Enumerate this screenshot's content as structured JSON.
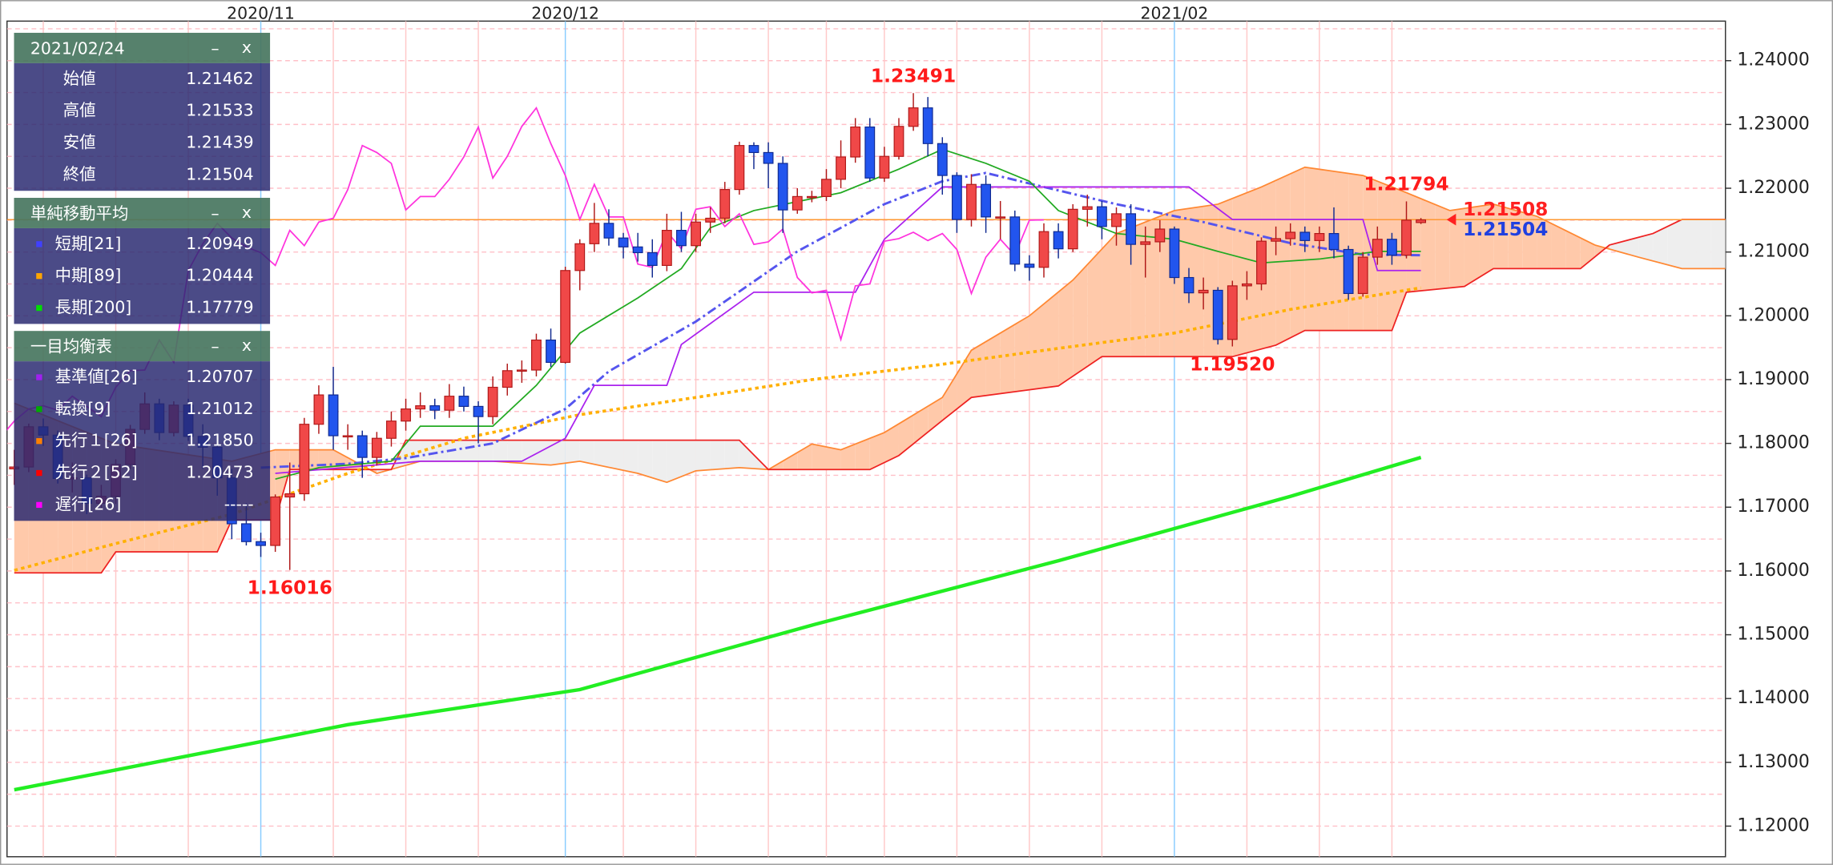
{
  "chart_data": {
    "type": "candlestick",
    "xlim": [
      -0.5,
      118
    ],
    "ylim": [
      1.1152,
      1.2462
    ],
    "yticks": [
      {
        "value": 1.12,
        "label": "1.12000"
      },
      {
        "value": 1.13,
        "label": "1.13000"
      },
      {
        "value": 1.14,
        "label": "1.14000"
      },
      {
        "value": 1.15,
        "label": "1.15000"
      },
      {
        "value": 1.16,
        "label": "1.16000"
      },
      {
        "value": 1.17,
        "label": "1.17000"
      },
      {
        "value": 1.18,
        "label": "1.18000"
      },
      {
        "value": 1.19,
        "label": "1.19000"
      },
      {
        "value": 1.2,
        "label": "1.20000"
      },
      {
        "value": 1.21,
        "label": "1.21000"
      },
      {
        "value": 1.22,
        "label": "1.22000"
      },
      {
        "value": 1.23,
        "label": "1.23000"
      },
      {
        "value": 1.24,
        "label": "1.24000"
      }
    ],
    "yminor": [
      1.115,
      1.125,
      1.135,
      1.145,
      1.155,
      1.165,
      1.175,
      1.185,
      1.195,
      1.205,
      1.215,
      1.225,
      1.235,
      1.245
    ],
    "xticks": [
      {
        "value": 17,
        "label": "2020/11"
      },
      {
        "value": 38,
        "label": "2020/12"
      },
      {
        "value": 80,
        "label": "2021/02"
      }
    ],
    "xgrid": [
      2,
      7,
      12,
      22,
      27,
      32,
      42,
      47,
      52,
      56,
      60,
      65,
      70,
      75,
      85,
      90,
      95
    ],
    "grid": true,
    "up_color": "#f04848",
    "down_color": "#2255ee",
    "open": [
      1.176,
      1.1763,
      1.1826,
      1.1813,
      1.1745,
      1.1746,
      1.1706,
      1.1717,
      1.1767,
      1.1822,
      1.1862,
      1.1817,
      1.186,
      1.1811,
      1.1794,
      1.1746,
      1.1674,
      1.1646,
      1.164,
      1.1716,
      1.1721,
      1.183,
      1.1876,
      1.1812,
      1.1812,
      1.1778,
      1.1808,
      1.1835,
      1.1854,
      1.1859,
      1.1852,
      1.1874,
      1.1858,
      1.1842,
      1.1888,
      1.1914,
      1.1915,
      1.1962,
      1.1927,
      1.2071,
      1.2113,
      1.2145,
      1.2122,
      1.2108,
      1.2099,
      1.2079,
      1.2134,
      1.211,
      1.2147,
      1.2153,
      1.2198,
      1.2267,
      1.2256,
      1.2239,
      1.2166,
      1.2187,
      1.2187,
      1.2214,
      1.2249,
      1.2296,
      1.2216,
      1.225,
      1.2297,
      1.2326,
      1.227,
      1.222,
      1.2151,
      1.2206,
      1.2155,
      1.2155,
      1.2081,
      1.2076,
      1.2132,
      1.2105,
      1.2167,
      1.2171,
      1.214,
      1.216,
      1.2112,
      1.2116,
      1.2136,
      1.206,
      1.2036,
      1.204,
      1.1963,
      1.2047,
      1.205,
      1.2117,
      1.2121,
      1.2131,
      1.2118,
      1.2129,
      1.2104,
      1.2035,
      1.2092,
      1.212,
      1.2095,
      1.21462
    ],
    "high": [
      1.179,
      1.1831,
      1.1839,
      1.182,
      1.177,
      1.1751,
      1.1735,
      1.1775,
      1.1829,
      1.188,
      1.187,
      1.1866,
      1.187,
      1.183,
      1.1802,
      1.176,
      1.1706,
      1.166,
      1.172,
      1.177,
      1.184,
      1.1891,
      1.192,
      1.183,
      1.182,
      1.1818,
      1.185,
      1.187,
      1.188,
      1.187,
      1.1893,
      1.1889,
      1.1866,
      1.1905,
      1.1925,
      1.193,
      1.1972,
      1.198,
      1.2077,
      1.212,
      1.2177,
      1.2167,
      1.213,
      1.213,
      1.212,
      1.216,
      1.2163,
      1.216,
      1.217,
      1.221,
      1.2273,
      1.2272,
      1.2272,
      1.225,
      1.22,
      1.2196,
      1.223,
      1.2275,
      1.231,
      1.231,
      1.2265,
      1.231,
      1.23491,
      1.2343,
      1.228,
      1.2225,
      1.2222,
      1.222,
      1.218,
      1.2165,
      1.2095,
      1.2145,
      1.2145,
      1.2175,
      1.219,
      1.218,
      1.217,
      1.2175,
      1.214,
      1.215,
      1.214,
      1.2075,
      1.206,
      1.2045,
      1.2055,
      1.207,
      1.2123,
      1.214,
      1.2145,
      1.214,
      1.214,
      1.217,
      1.211,
      1.21,
      1.214,
      1.213,
      1.21794,
      1.21533
    ],
    "low": [
      1.1735,
      1.1755,
      1.1796,
      1.1737,
      1.1723,
      1.1689,
      1.1695,
      1.1705,
      1.176,
      1.1815,
      1.1805,
      1.1811,
      1.1804,
      1.176,
      1.1718,
      1.165,
      1.164,
      1.1622,
      1.163,
      1.16016,
      1.171,
      1.1815,
      1.179,
      1.179,
      1.1746,
      1.1765,
      1.1795,
      1.182,
      1.184,
      1.1838,
      1.184,
      1.185,
      1.18,
      1.183,
      1.1875,
      1.1895,
      1.1905,
      1.192,
      1.1925,
      1.204,
      1.21,
      1.211,
      1.209,
      1.2085,
      1.206,
      1.207,
      1.21,
      1.21,
      1.213,
      1.2145,
      1.219,
      1.223,
      1.22,
      1.213,
      1.216,
      1.2178,
      1.218,
      1.22,
      1.224,
      1.221,
      1.221,
      1.2245,
      1.229,
      1.225,
      1.219,
      1.213,
      1.214,
      1.213,
      1.212,
      1.207,
      1.2055,
      1.206,
      1.209,
      1.21,
      1.214,
      1.212,
      1.211,
      1.208,
      1.206,
      1.21,
      1.205,
      1.202,
      1.201,
      1.1955,
      1.1952,
      1.2025,
      1.204,
      1.2095,
      1.211,
      1.21,
      1.21,
      1.209,
      1.2025,
      1.203,
      1.208,
      1.208,
      1.209,
      1.21439
    ],
    "close": [
      1.1763,
      1.1826,
      1.1813,
      1.1745,
      1.1746,
      1.1706,
      1.1717,
      1.1767,
      1.1822,
      1.1862,
      1.1817,
      1.186,
      1.1811,
      1.1794,
      1.1746,
      1.1674,
      1.1646,
      1.164,
      1.1716,
      1.1721,
      1.183,
      1.1876,
      1.1812,
      1.1812,
      1.1778,
      1.1808,
      1.1835,
      1.1854,
      1.1859,
      1.1852,
      1.1874,
      1.1858,
      1.1842,
      1.1888,
      1.1914,
      1.1915,
      1.1962,
      1.1927,
      1.2071,
      1.2113,
      1.2145,
      1.2122,
      1.2108,
      1.2099,
      1.2079,
      1.2134,
      1.211,
      1.2147,
      1.2153,
      1.2198,
      1.2267,
      1.2256,
      1.2239,
      1.2166,
      1.2187,
      1.2187,
      1.2214,
      1.2249,
      1.2296,
      1.2216,
      1.225,
      1.2297,
      1.2326,
      1.227,
      1.222,
      1.2151,
      1.2206,
      1.2155,
      1.2155,
      1.2081,
      1.2076,
      1.2132,
      1.2105,
      1.2167,
      1.2171,
      1.214,
      1.216,
      1.2112,
      1.2116,
      1.2136,
      1.206,
      1.2036,
      1.204,
      1.1963,
      1.2047,
      1.205,
      1.2117,
      1.2121,
      1.2131,
      1.2118,
      1.2129,
      1.2104,
      1.2035,
      1.2092,
      1.212,
      1.2095,
      1.215,
      1.21504
    ],
    "chikou": {
      "shift": 26,
      "color": "#ff33dd"
    },
    "lines": [
      {
        "color": "#22ee22",
        "width": 3,
        "dash": "",
        "x": [
          0,
          23,
          39,
          55,
          72,
          88,
          97
        ],
        "values": [
          1.1257,
          1.1359,
          1.1414,
          1.1515,
          1.1616,
          1.1717,
          1.1778
        ]
      },
      {
        "color": "#ffb000",
        "width": 2.5,
        "dash": "3 3",
        "x": [
          0,
          7,
          15,
          23,
          31,
          39,
          47,
          55,
          64,
          72,
          80,
          88,
          97
        ],
        "values": [
          1.1601,
          1.1643,
          1.1689,
          1.1753,
          1.1808,
          1.1845,
          1.1872,
          1.19,
          1.1924,
          1.1949,
          1.1973,
          1.201,
          1.2044
        ]
      },
      {
        "color": "#5555ee",
        "width": 2,
        "dash": "8 3 2 3",
        "x": [
          17,
          23,
          27,
          33,
          38,
          41,
          47,
          54,
          60,
          64,
          67,
          71,
          76,
          82,
          88,
          93,
          97
        ],
        "values": [
          1.1762,
          1.1768,
          1.1777,
          1.18,
          1.1854,
          1.1913,
          1.1991,
          1.2101,
          1.2175,
          1.2211,
          1.2224,
          1.2202,
          1.2175,
          1.2147,
          1.2114,
          1.2096,
          1.2095
        ]
      },
      {
        "color": "#aa22ee",
        "width": 1.2,
        "dash": "",
        "x": [
          18,
          28,
          35,
          38,
          40,
          45,
          46,
          51,
          58,
          60,
          64,
          70,
          81,
          84,
          93,
          94,
          97
        ],
        "values": [
          1.1753,
          1.1772,
          1.1772,
          1.1808,
          1.1891,
          1.1891,
          1.1955,
          1.2037,
          1.2037,
          1.212,
          1.2202,
          1.2202,
          1.2202,
          1.2151,
          1.2151,
          1.2071,
          1.2071
        ]
      },
      {
        "color": "#22aa22",
        "width": 1.2,
        "dash": "",
        "x": [
          18,
          21,
          26,
          28,
          33,
          36,
          39,
          43,
          46,
          48,
          51,
          57,
          61,
          64,
          67,
          70,
          72,
          76,
          80,
          83,
          86,
          90,
          94,
          97
        ],
        "values": [
          1.1744,
          1.1762,
          1.1772,
          1.1827,
          1.1827,
          1.1891,
          1.1973,
          1.2028,
          1.2074,
          1.2138,
          1.2165,
          1.2193,
          1.223,
          1.2261,
          1.2239,
          1.2211,
          1.2165,
          1.2129,
          1.212,
          1.2101,
          1.2083,
          1.2089,
          1.2101,
          1.2101
        ]
      }
    ],
    "cloud": {
      "fill_up": "#ffc9aa",
      "fill_down": "#eeeeee",
      "span_a": {
        "color": "#ff8833",
        "x": [
          0,
          7,
          15,
          18,
          22,
          25,
          28,
          33,
          37,
          39,
          43,
          45,
          47,
          50,
          52,
          55,
          57,
          60,
          64,
          66,
          70,
          73,
          76,
          80,
          83,
          86,
          89,
          93,
          96,
          99,
          102,
          105,
          109,
          112,
          115,
          118
        ],
        "values": [
          1.1863,
          1.1799,
          1.1772,
          1.179,
          1.179,
          1.1753,
          1.1772,
          1.1772,
          1.1766,
          1.1772,
          1.1753,
          1.1739,
          1.1757,
          1.1762,
          1.1759,
          1.1799,
          1.179,
          1.1817,
          1.1872,
          1.1946,
          1.2,
          1.2056,
          1.2129,
          1.2165,
          1.2175,
          1.2202,
          1.2233,
          1.222,
          1.2193,
          1.2165,
          1.2175,
          1.2156,
          1.2111,
          1.2092,
          1.2074,
          1.2074
        ]
      },
      "span_b": {
        "color": "#ee2222",
        "x": [
          0,
          6,
          7,
          14,
          15,
          18,
          19,
          26,
          27,
          50,
          52,
          59,
          61,
          64,
          66,
          72,
          75,
          84,
          87,
          89,
          95,
          96,
          100,
          102,
          108,
          110,
          113,
          115,
          118
        ],
        "values": [
          1.1597,
          1.1597,
          1.163,
          1.163,
          1.168,
          1.168,
          1.1759,
          1.1759,
          1.1805,
          1.1805,
          1.1759,
          1.1759,
          1.1781,
          1.1836,
          1.1872,
          1.189,
          1.1936,
          1.1936,
          1.1954,
          1.1977,
          1.1977,
          1.2037,
          1.2046,
          1.2074,
          1.2074,
          1.2111,
          1.2129,
          1.2151,
          1.2151
        ]
      }
    },
    "annotations": [
      {
        "kind": "high",
        "value": 1.23491,
        "label": "1.23491",
        "color": "#ff1a1a"
      },
      {
        "kind": "low",
        "value": 1.16016,
        "label": "1.16016",
        "color": "#ff1a1a"
      },
      {
        "kind": "low",
        "value": 1.1952,
        "label": "1.19520",
        "color": "#ff1a1a"
      },
      {
        "kind": "high",
        "value": 1.21794,
        "label": "1.21794",
        "color": "#ff1a1a"
      }
    ],
    "price_line_color": "#ff9933",
    "price_labels": [
      {
        "value": 1.21508,
        "label": "1.21508",
        "color": "#ff2020"
      },
      {
        "value": 1.21504,
        "label": "1.21504",
        "color": "#2040e0"
      }
    ]
  },
  "panel": {
    "controls": [
      "–",
      "x"
    ],
    "sections": [
      {
        "title": "2021/02/24",
        "rows": [
          {
            "label": "始値",
            "value": "1.21462"
          },
          {
            "label": "高値",
            "value": "1.21533"
          },
          {
            "label": "安値",
            "value": "1.21439"
          },
          {
            "label": "終値",
            "value": "1.21504"
          }
        ]
      },
      {
        "title": "単純移動平均",
        "rows": [
          {
            "label": "短期[21]",
            "value": "1.20949",
            "color": "#4040ff"
          },
          {
            "label": "中期[89]",
            "value": "1.20444",
            "color": "#ffa500"
          },
          {
            "label": "長期[200]",
            "value": "1.17779",
            "color": "#00dd00"
          }
        ]
      },
      {
        "title": "一目均衡表",
        "rows": [
          {
            "label": "基準値[26]",
            "value": "1.20707",
            "color": "#a020f0"
          },
          {
            "label": "転換[9]",
            "value": "1.21012",
            "color": "#00aa00"
          },
          {
            "label": "先行１[26]",
            "value": "1.21850",
            "color": "#ff8000"
          },
          {
            "label": "先行２[52]",
            "value": "1.20473",
            "color": "#ff0000"
          },
          {
            "label": "遅行[26]",
            "value": "-----",
            "color": "#ff00ff"
          }
        ]
      }
    ]
  }
}
